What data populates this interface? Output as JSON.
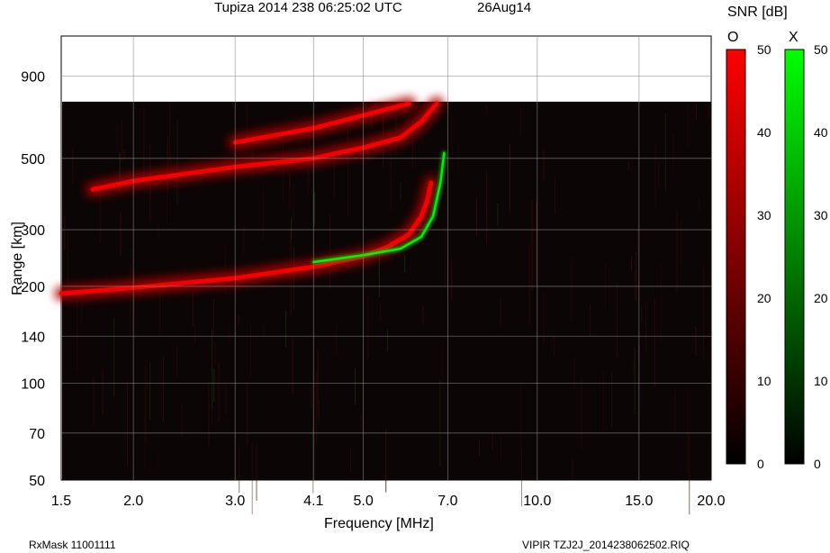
{
  "header": {
    "title": "Tupiza 2014 238 06:25:02 UTC",
    "date": "26Aug14"
  },
  "colorbar": {
    "title": "SNR [dB]",
    "o_label": "O",
    "x_label": "X",
    "ticks": [
      "0",
      "10",
      "20",
      "30",
      "40",
      "50"
    ],
    "o_color": "#ff0000",
    "x_color": "#00ff00"
  },
  "footer": {
    "rxmask": "RxMask 11001111",
    "file": "VIPIR  TZJ2J_2014238062502.RIQ"
  },
  "chart_data": {
    "type": "heatmap",
    "title": "Tupiza 2014 238 06:25:02 UTC",
    "xlabel": "Frequency [MHz]",
    "ylabel": "Range [km]",
    "x_scale": "log",
    "y_scale": "log",
    "xlim": [
      1.5,
      20.0
    ],
    "ylim": [
      50,
      1200
    ],
    "x_ticks": [
      1.5,
      2.0,
      3.0,
      4.1,
      5.0,
      7.0,
      10.0,
      15.0,
      20.0
    ],
    "x_tick_labels": [
      "1.5",
      "2.0",
      "3.0",
      "4.1",
      "5.0",
      "7.0",
      "10.0",
      "15.0",
      "20.0"
    ],
    "y_ticks": [
      50,
      70,
      100,
      140,
      200,
      300,
      500,
      900
    ],
    "y_tick_labels": [
      "50",
      "70",
      "100",
      "140",
      "200",
      "300",
      "500",
      "900"
    ],
    "data_max_range_km": 750,
    "grid": true,
    "traces": [
      {
        "name": "O",
        "color": "#ff0000",
        "points": [
          [
            1.5,
            190
          ],
          [
            2.0,
            198
          ],
          [
            3.0,
            212
          ],
          [
            4.1,
            230
          ],
          [
            5.0,
            248
          ],
          [
            5.5,
            265
          ],
          [
            6.0,
            290
          ],
          [
            6.3,
            330
          ],
          [
            6.45,
            370
          ],
          [
            6.55,
            420
          ]
        ]
      },
      {
        "name": "O",
        "color": "#ff0000",
        "points": [
          [
            1.7,
            400
          ],
          [
            2.0,
            425
          ],
          [
            3.0,
            470
          ],
          [
            4.1,
            500
          ],
          [
            5.0,
            540
          ],
          [
            5.8,
            580
          ],
          [
            6.3,
            650
          ],
          [
            6.7,
            740
          ]
        ]
      },
      {
        "name": "O",
        "color": "#ff0000",
        "points": [
          [
            3.0,
            560
          ],
          [
            4.1,
            620
          ],
          [
            5.0,
            680
          ],
          [
            6.0,
            740
          ]
        ]
      },
      {
        "name": "X",
        "color": "#00ff00",
        "points": [
          [
            4.1,
            238
          ],
          [
            5.0,
            250
          ],
          [
            5.8,
            262
          ],
          [
            6.3,
            285
          ],
          [
            6.6,
            330
          ],
          [
            6.8,
            420
          ],
          [
            6.9,
            520
          ]
        ]
      }
    ]
  }
}
